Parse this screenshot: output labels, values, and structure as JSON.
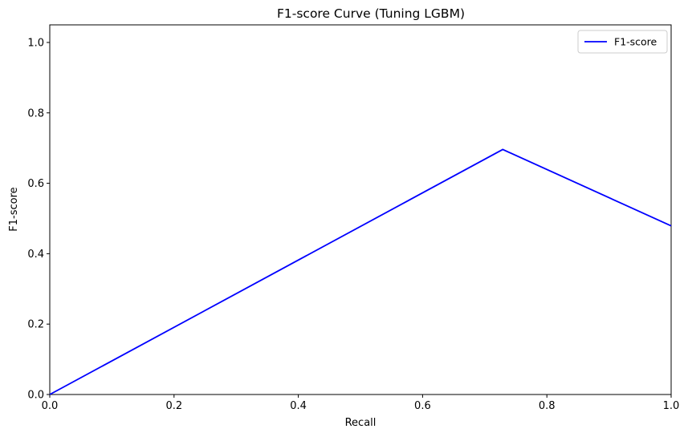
{
  "chart_data": {
    "type": "line",
    "title": "F1-score Curve (Tuning LGBM)",
    "xlabel": "Recall",
    "ylabel": "F1-score",
    "xlim": [
      0.0,
      1.0
    ],
    "ylim": [
      0.0,
      1.05
    ],
    "xticks": [
      "0.0",
      "0.2",
      "0.4",
      "0.6",
      "0.8",
      "1.0"
    ],
    "yticks": [
      "0.0",
      "0.2",
      "0.4",
      "0.6",
      "0.8",
      "1.0"
    ],
    "grid": false,
    "legend_position": "top-right",
    "series": [
      {
        "name": "F1-score",
        "color": "#0000ff",
        "x": [
          0.0,
          0.729,
          1.0
        ],
        "y": [
          0.0,
          0.696,
          0.479
        ]
      }
    ]
  }
}
